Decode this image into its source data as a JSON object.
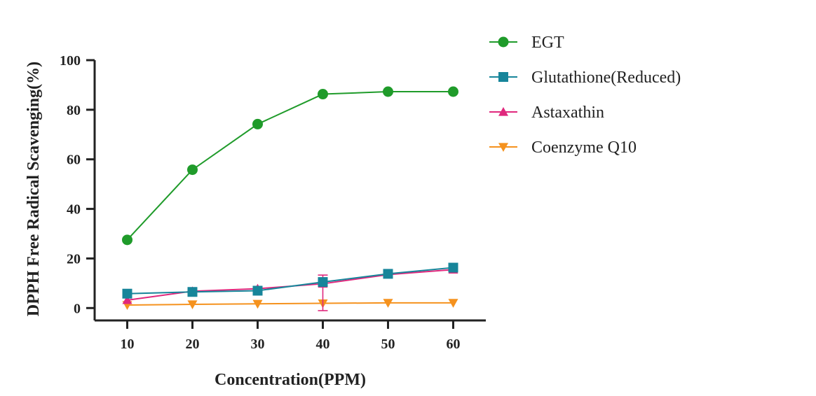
{
  "chart_data": {
    "type": "line",
    "xlabel": "Concentration(PPM)",
    "ylabel": "DPPH Free Radical Scavenging(%)",
    "x": [
      10,
      20,
      30,
      40,
      50,
      60
    ],
    "xlim": [
      5,
      65
    ],
    "ylim": [
      -5,
      100
    ],
    "xticks": [
      10,
      20,
      30,
      40,
      50,
      60
    ],
    "yticks": [
      0,
      20,
      40,
      60,
      80,
      100
    ],
    "grid": false,
    "legend_position": "top-right outside",
    "series": [
      {
        "name": "EGT",
        "marker": "circle",
        "color": "#1f9b2a",
        "values": [
          27.5,
          55.8,
          74.2,
          86.3,
          87.3,
          87.3
        ]
      },
      {
        "name": "Glutathione(Reduced)",
        "marker": "square",
        "color": "#17859a",
        "values": [
          5.8,
          6.5,
          7.0,
          10.5,
          13.8,
          16.3
        ]
      },
      {
        "name": "Astaxathin",
        "marker": "triangle-up",
        "color": "#e0287d",
        "values": [
          3.2,
          6.8,
          7.8,
          9.8,
          13.5,
          15.5
        ],
        "error": [
          0,
          0,
          0,
          3.5,
          0,
          0
        ]
      },
      {
        "name": "Coenzyme Q10",
        "marker": "triangle-down",
        "color": "#f5921e",
        "values": [
          1.2,
          1.5,
          1.7,
          1.9,
          2.1,
          2.1
        ]
      }
    ]
  }
}
